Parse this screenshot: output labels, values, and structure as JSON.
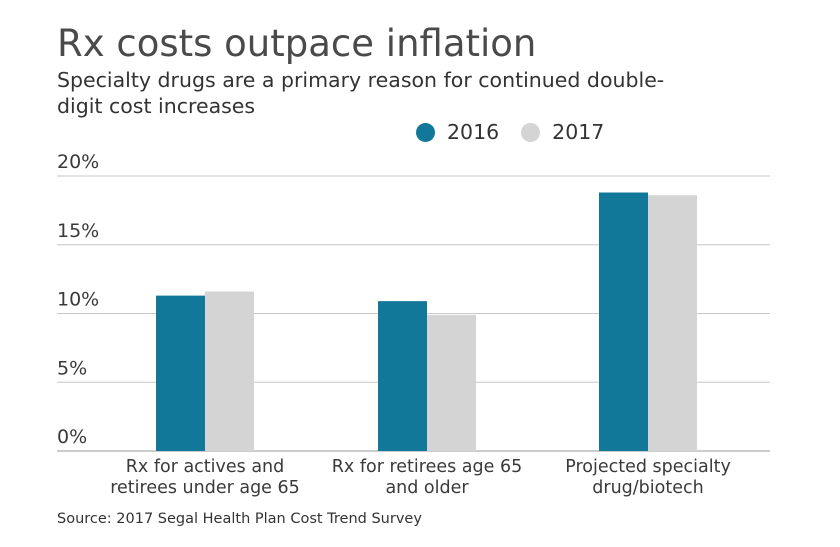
{
  "header": {
    "title": "Rx costs outpace inflation",
    "subtitle": "Specialty drugs are a primary reason for continued double-digit cost increases"
  },
  "legend": [
    {
      "label": "2016",
      "color": "#11789a"
    },
    {
      "label": "2017",
      "color": "#d4d4d4"
    }
  ],
  "footer": {
    "source": "Source: 2017 Segal Health Plan Cost Trend Survey"
  },
  "chart_data": {
    "type": "bar",
    "title": "Rx costs outpace inflation",
    "subtitle": "Specialty drugs are a primary reason for continued double-digit cost increases",
    "xlabel": "",
    "ylabel": "",
    "ylim": [
      0,
      20
    ],
    "yticks": [
      0,
      5,
      10,
      15,
      20
    ],
    "ytick_labels": [
      "0%",
      "5%",
      "10%",
      "15%",
      "20%"
    ],
    "grid": true,
    "legend_position": "top-right",
    "categories": [
      [
        "Rx for actives and",
        "retirees under age 65"
      ],
      [
        "Rx for retirees age 65",
        "and older"
      ],
      [
        "Projected specialty",
        "drug/biotech"
      ]
    ],
    "series": [
      {
        "name": "2016",
        "color": "#11789a",
        "values": [
          11.3,
          10.9,
          18.8
        ]
      },
      {
        "name": "2017",
        "color": "#d4d4d4",
        "values": [
          11.6,
          9.9,
          18.6
        ]
      }
    ]
  }
}
